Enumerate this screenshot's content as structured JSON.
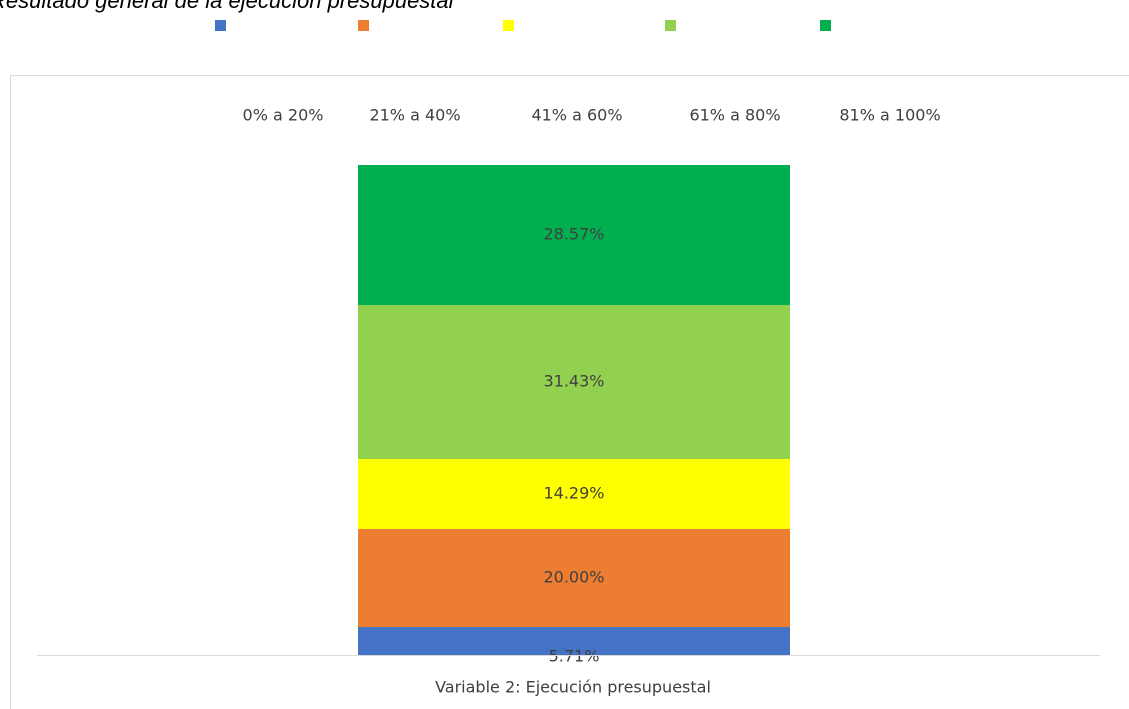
{
  "chart_data": {
    "type": "stacked-bar",
    "title": "Resultado general de la ejecución presupuestal",
    "categories": [
      "Variable 2: Ejecución presupuestal"
    ],
    "series": [
      {
        "name": "0% a 20%",
        "color": "#4472c4",
        "values": [
          5.71
        ],
        "value_labels": [
          "5.71%"
        ]
      },
      {
        "name": "21% a 40%",
        "color": "#ed7d31",
        "values": [
          20.0
        ],
        "value_labels": [
          "20.00%"
        ]
      },
      {
        "name": "41% a 60%",
        "color": "#ffff00",
        "values": [
          14.29
        ],
        "value_labels": [
          "14.29%"
        ]
      },
      {
        "name": "61% a 80%",
        "color": "#92d050",
        "values": [
          31.43
        ],
        "value_labels": [
          "31.43%"
        ]
      },
      {
        "name": "81% a 100%",
        "color": "#00b050",
        "values": [
          28.57
        ],
        "value_labels": [
          "28.57%"
        ]
      }
    ]
  }
}
